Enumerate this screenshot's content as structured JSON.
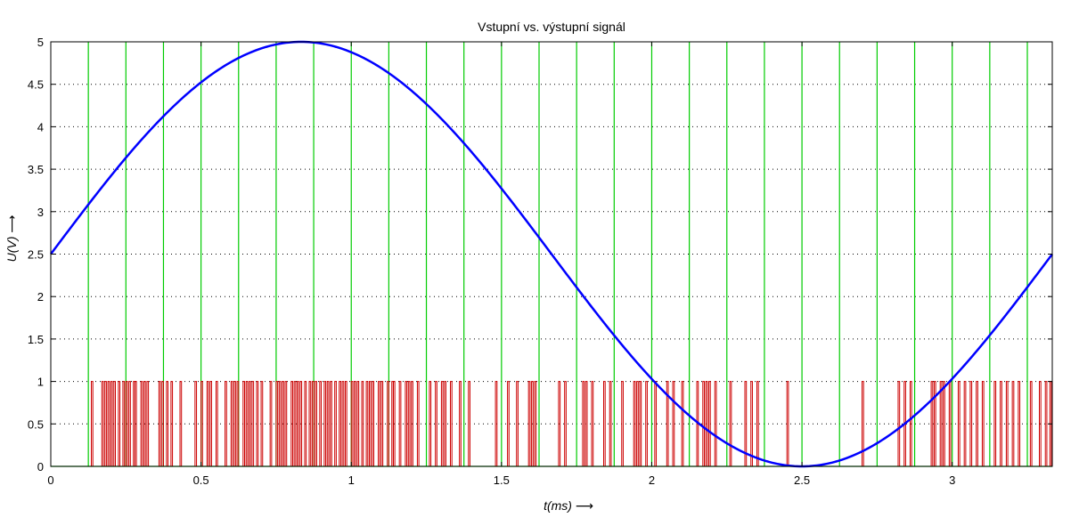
{
  "chart_data": {
    "type": "line",
    "title": "Vstupní vs. výstupní signál",
    "xlabel": "t(ms) ⟶",
    "ylabel": "U(V) ⟶",
    "xlim": [
      0,
      3.333
    ],
    "ylim": [
      0,
      5
    ],
    "grid": "dotted horizontal",
    "xticks": [
      "0",
      "0.5",
      "1",
      "1.5",
      "2",
      "2.5",
      "3"
    ],
    "yticks": [
      "0",
      "0.5",
      "1",
      "1.5",
      "2",
      "2.5",
      "3",
      "3.5",
      "4",
      "4.5",
      "5"
    ],
    "series": [
      {
        "kind": "sine",
        "color": "#0000ff",
        "offset": 2.5,
        "amplitude": 2.5,
        "period": 3.333,
        "description": "input signal",
        "samples": [
          {
            "x": 0,
            "y": 2.5
          },
          {
            "x": 0.833,
            "y": 5
          },
          {
            "x": 1.667,
            "y": 2.5
          },
          {
            "x": 2.5,
            "y": 0
          },
          {
            "x": 3.333,
            "y": 2.5
          }
        ]
      },
      {
        "kind": "clock",
        "color": "#00cc00",
        "level": 5,
        "edges": [
          0.125,
          0.25,
          0.375,
          0.5,
          0.625,
          0.75,
          0.875,
          1.0,
          1.125,
          1.25,
          1.375,
          1.5,
          1.625,
          1.75,
          1.875,
          2.0,
          2.125,
          2.25,
          2.375,
          2.5,
          2.625,
          2.75,
          2.875,
          3.0,
          3.125,
          3.25
        ]
      },
      {
        "kind": "pulse-density",
        "color": "#cc0000",
        "level": 1,
        "pulses": [
          [
            0.135,
            0.14
          ],
          [
            0.17,
            0.175
          ],
          [
            0.18,
            0.185
          ],
          [
            0.19,
            0.195
          ],
          [
            0.2,
            0.205
          ],
          [
            0.21,
            0.215
          ],
          [
            0.225,
            0.23
          ],
          [
            0.24,
            0.245
          ],
          [
            0.25,
            0.255
          ],
          [
            0.26,
            0.265
          ],
          [
            0.275,
            0.28
          ],
          [
            0.28,
            0.285
          ],
          [
            0.3,
            0.305
          ],
          [
            0.31,
            0.315
          ],
          [
            0.32,
            0.325
          ],
          [
            0.36,
            0.365
          ],
          [
            0.37,
            0.375
          ],
          [
            0.385,
            0.39
          ],
          [
            0.4,
            0.405
          ],
          [
            0.43,
            0.435
          ],
          [
            0.48,
            0.485
          ],
          [
            0.5,
            0.505
          ],
          [
            0.52,
            0.525
          ],
          [
            0.53,
            0.535
          ],
          [
            0.55,
            0.555
          ],
          [
            0.58,
            0.585
          ],
          [
            0.6,
            0.605
          ],
          [
            0.61,
            0.615
          ],
          [
            0.62,
            0.625
          ],
          [
            0.64,
            0.645
          ],
          [
            0.65,
            0.655
          ],
          [
            0.66,
            0.665
          ],
          [
            0.67,
            0.675
          ],
          [
            0.685,
            0.69
          ],
          [
            0.7,
            0.705
          ],
          [
            0.73,
            0.735
          ],
          [
            0.75,
            0.755
          ],
          [
            0.76,
            0.765
          ],
          [
            0.77,
            0.775
          ],
          [
            0.78,
            0.785
          ],
          [
            0.8,
            0.805
          ],
          [
            0.81,
            0.815
          ],
          [
            0.82,
            0.825
          ],
          [
            0.83,
            0.835
          ],
          [
            0.845,
            0.85
          ],
          [
            0.86,
            0.865
          ],
          [
            0.87,
            0.875
          ],
          [
            0.88,
            0.885
          ],
          [
            0.895,
            0.9
          ],
          [
            0.91,
            0.915
          ],
          [
            0.92,
            0.925
          ],
          [
            0.93,
            0.935
          ],
          [
            0.945,
            0.95
          ],
          [
            0.96,
            0.965
          ],
          [
            0.97,
            0.975
          ],
          [
            0.98,
            0.985
          ],
          [
            1.0,
            1.005
          ],
          [
            1.01,
            1.015
          ],
          [
            1.02,
            1.025
          ],
          [
            1.035,
            1.04
          ],
          [
            1.05,
            1.055
          ],
          [
            1.06,
            1.065
          ],
          [
            1.07,
            1.075
          ],
          [
            1.09,
            1.095
          ],
          [
            1.1,
            1.105
          ],
          [
            1.12,
            1.125
          ],
          [
            1.135,
            1.14
          ],
          [
            1.14,
            1.145
          ],
          [
            1.16,
            1.165
          ],
          [
            1.18,
            1.185
          ],
          [
            1.19,
            1.195
          ],
          [
            1.2,
            1.205
          ],
          [
            1.22,
            1.225
          ],
          [
            1.26,
            1.265
          ],
          [
            1.28,
            1.285
          ],
          [
            1.3,
            1.305
          ],
          [
            1.31,
            1.315
          ],
          [
            1.33,
            1.335
          ],
          [
            1.36,
            1.365
          ],
          [
            1.39,
            1.395
          ],
          [
            1.48,
            1.485
          ],
          [
            1.52,
            1.525
          ],
          [
            1.55,
            1.555
          ],
          [
            1.59,
            1.595
          ],
          [
            1.6,
            1.605
          ],
          [
            1.61,
            1.615
          ],
          [
            1.69,
            1.695
          ],
          [
            1.71,
            1.715
          ],
          [
            1.77,
            1.775
          ],
          [
            1.78,
            1.785
          ],
          [
            1.8,
            1.805
          ],
          [
            1.84,
            1.845
          ],
          [
            1.86,
            1.865
          ],
          [
            1.9,
            1.905
          ],
          [
            1.94,
            1.945
          ],
          [
            1.95,
            1.955
          ],
          [
            1.96,
            1.965
          ],
          [
            1.98,
            1.985
          ],
          [
            2.01,
            2.015
          ],
          [
            2.05,
            2.055
          ],
          [
            2.07,
            2.075
          ],
          [
            2.1,
            2.105
          ],
          [
            2.15,
            2.155
          ],
          [
            2.17,
            2.175
          ],
          [
            2.18,
            2.185
          ],
          [
            2.19,
            2.195
          ],
          [
            2.21,
            2.215
          ],
          [
            2.26,
            2.265
          ],
          [
            2.31,
            2.315
          ],
          [
            2.33,
            2.335
          ],
          [
            2.35,
            2.355
          ],
          [
            2.45,
            2.455
          ],
          [
            2.7,
            2.705
          ],
          [
            2.82,
            2.825
          ],
          [
            2.84,
            2.845
          ],
          [
            2.86,
            2.865
          ],
          [
            2.93,
            2.935
          ],
          [
            2.94,
            2.945
          ],
          [
            2.96,
            2.965
          ],
          [
            2.97,
            2.975
          ],
          [
            2.99,
            2.995
          ],
          [
            3.02,
            3.025
          ],
          [
            3.04,
            3.045
          ],
          [
            3.06,
            3.065
          ],
          [
            3.08,
            3.085
          ],
          [
            3.1,
            3.105
          ],
          [
            3.14,
            3.145
          ],
          [
            3.16,
            3.165
          ],
          [
            3.18,
            3.185
          ],
          [
            3.2,
            3.205
          ],
          [
            3.22,
            3.225
          ],
          [
            3.26,
            3.265
          ],
          [
            3.29,
            3.295
          ],
          [
            3.31,
            3.315
          ],
          [
            3.325,
            3.33
          ]
        ]
      }
    ]
  }
}
